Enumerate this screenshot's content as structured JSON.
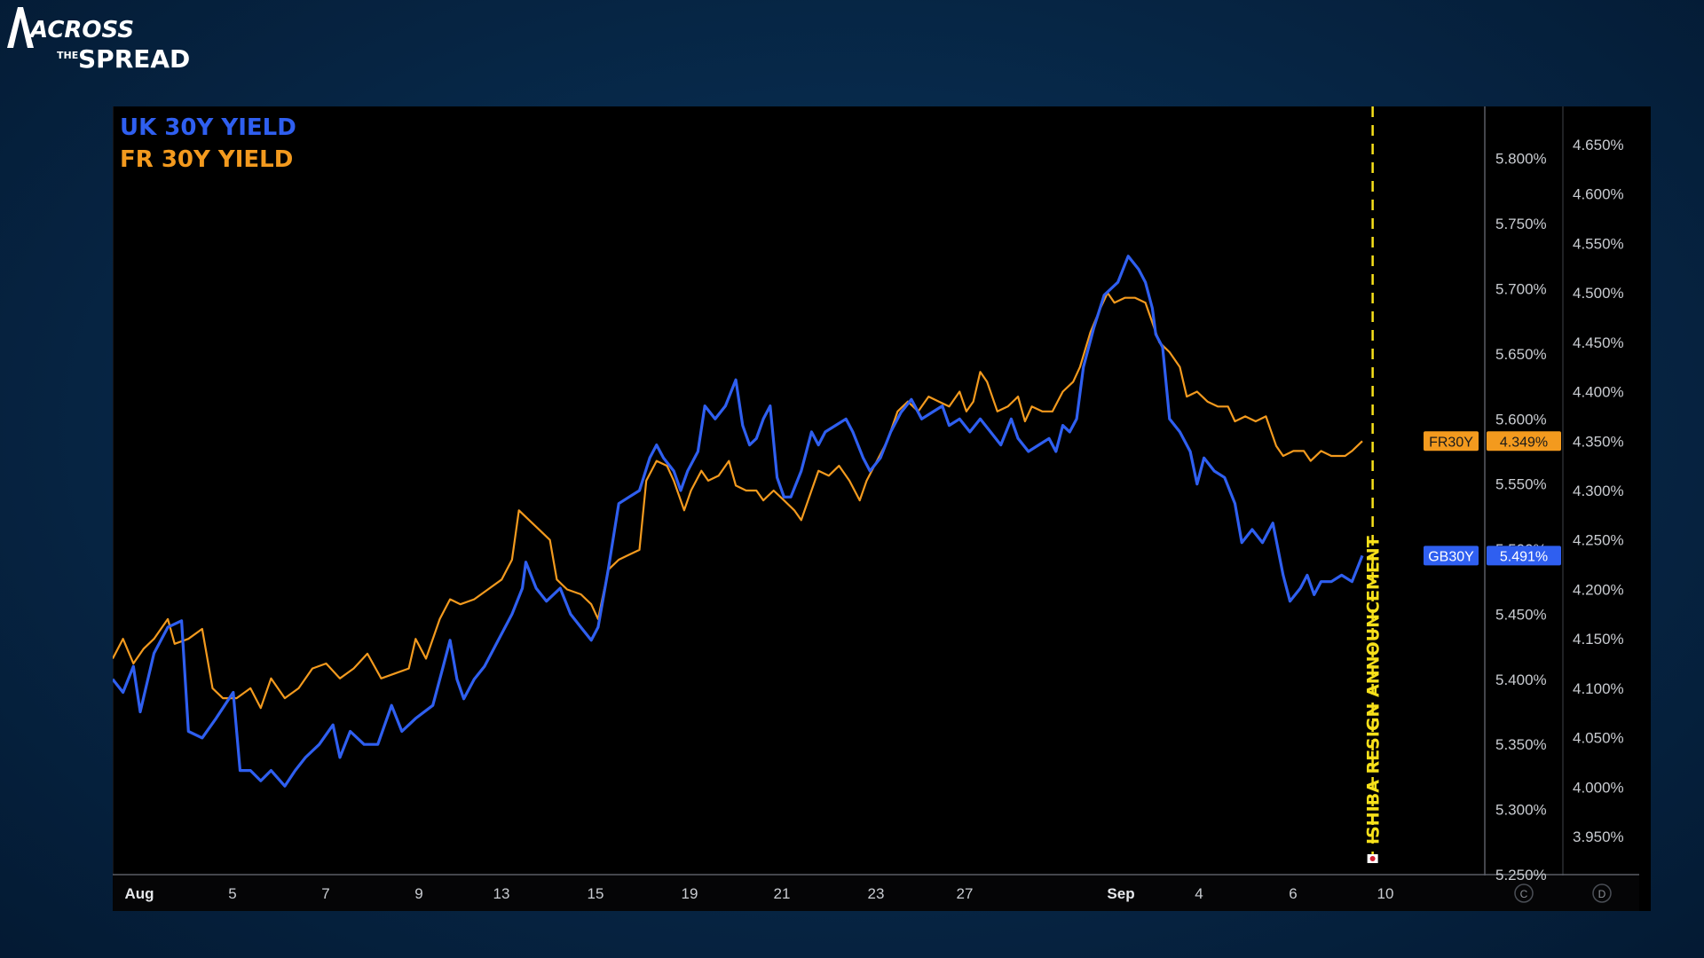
{
  "logo": {
    "line1": "ACROSS",
    "small": "THE",
    "line2": "SPREAD"
  },
  "colors": {
    "uk": "#2f5ff0",
    "fr": "#f39a1e",
    "annotation": "#f7e01a",
    "axis_text": "#c9ccd1"
  },
  "chart_data": {
    "type": "line",
    "legend": [
      "UK 30Y YIELD",
      "FR 30Y YIELD"
    ],
    "legend_position": "top-left",
    "grid": false,
    "x_ticks": [
      "Aug",
      "5",
      "7",
      "9",
      "13",
      "15",
      "19",
      "21",
      "23",
      "27",
      "Sep",
      "4",
      "6",
      "10"
    ],
    "bold_x_ticks": [
      "Aug",
      "Sep"
    ],
    "scale_buttons": [
      "C",
      "D"
    ],
    "annotation": {
      "text": "ISHIBA RESIGN ANNOUNCEMENT",
      "at_index": 36.6
    },
    "y_axis_left": {
      "series": "UK 30Y YIELD",
      "range": [
        5.25,
        5.84
      ],
      "ticks": [
        "5.800%",
        "5.750%",
        "5.700%",
        "5.650%",
        "5.600%",
        "5.550%",
        "5.500%",
        "5.450%",
        "5.400%",
        "5.350%",
        "5.300%",
        "5.250%"
      ]
    },
    "y_axis_right": {
      "series": "FR 30Y YIELD",
      "range": [
        3.9115,
        4.6885
      ],
      "ticks": [
        "4.650%",
        "4.600%",
        "4.550%",
        "4.500%",
        "4.450%",
        "4.400%",
        "4.350%",
        "4.300%",
        "4.250%",
        "4.200%",
        "4.150%",
        "4.100%",
        "4.050%",
        "4.000%",
        "3.950%"
      ]
    },
    "series": [
      {
        "name": "UK 30Y YIELD",
        "label_tag": "GB30Y",
        "last_value": "5.491%",
        "axis": "left",
        "points": [
          [
            0,
            5.4
          ],
          [
            0.3,
            5.39
          ],
          [
            0.6,
            5.41
          ],
          [
            0.8,
            5.375
          ],
          [
            1.2,
            5.42
          ],
          [
            1.6,
            5.44
          ],
          [
            2.0,
            5.445
          ],
          [
            2.2,
            5.36
          ],
          [
            2.6,
            5.355
          ],
          [
            3.0,
            5.37
          ],
          [
            3.5,
            5.39
          ],
          [
            3.7,
            5.33
          ],
          [
            4.0,
            5.33
          ],
          [
            4.3,
            5.322
          ],
          [
            4.6,
            5.33
          ],
          [
            5.0,
            5.318
          ],
          [
            5.3,
            5.33
          ],
          [
            5.6,
            5.34
          ],
          [
            6.0,
            5.35
          ],
          [
            6.4,
            5.365
          ],
          [
            6.6,
            5.34
          ],
          [
            6.9,
            5.36
          ],
          [
            7.3,
            5.35
          ],
          [
            7.7,
            5.35
          ],
          [
            8.1,
            5.38
          ],
          [
            8.4,
            5.36
          ],
          [
            8.8,
            5.37
          ],
          [
            9.3,
            5.38
          ],
          [
            9.6,
            5.41
          ],
          [
            9.8,
            5.43
          ],
          [
            10.0,
            5.4
          ],
          [
            10.2,
            5.385
          ],
          [
            10.5,
            5.4
          ],
          [
            10.8,
            5.41
          ],
          [
            11.2,
            5.43
          ],
          [
            11.6,
            5.45
          ],
          [
            11.9,
            5.47
          ],
          [
            12.0,
            5.49
          ],
          [
            12.3,
            5.47
          ],
          [
            12.6,
            5.46
          ],
          [
            13.0,
            5.47
          ],
          [
            13.3,
            5.45
          ],
          [
            13.6,
            5.44
          ],
          [
            13.9,
            5.43
          ],
          [
            14.1,
            5.44
          ],
          [
            14.4,
            5.485
          ],
          [
            14.7,
            5.535
          ],
          [
            15.0,
            5.54
          ],
          [
            15.3,
            5.545
          ],
          [
            15.6,
            5.57
          ],
          [
            15.8,
            5.58
          ],
          [
            16.0,
            5.57
          ],
          [
            16.3,
            5.56
          ],
          [
            16.5,
            5.545
          ],
          [
            16.7,
            5.56
          ],
          [
            17.0,
            5.575
          ],
          [
            17.2,
            5.61
          ],
          [
            17.5,
            5.6
          ],
          [
            17.8,
            5.61
          ],
          [
            18.1,
            5.63
          ],
          [
            18.3,
            5.595
          ],
          [
            18.5,
            5.58
          ],
          [
            18.7,
            5.585
          ],
          [
            18.9,
            5.6
          ],
          [
            19.1,
            5.61
          ],
          [
            19.3,
            5.555
          ],
          [
            19.5,
            5.54
          ],
          [
            19.7,
            5.54
          ],
          [
            20.0,
            5.56
          ],
          [
            20.3,
            5.59
          ],
          [
            20.5,
            5.58
          ],
          [
            20.7,
            5.59
          ],
          [
            21.0,
            5.595
          ],
          [
            21.3,
            5.6
          ],
          [
            21.5,
            5.59
          ],
          [
            21.8,
            5.57
          ],
          [
            22.0,
            5.56
          ],
          [
            22.3,
            5.57
          ],
          [
            22.6,
            5.59
          ],
          [
            22.9,
            5.605
          ],
          [
            23.2,
            5.615
          ],
          [
            23.5,
            5.6
          ],
          [
            23.8,
            5.605
          ],
          [
            24.1,
            5.61
          ],
          [
            24.3,
            5.595
          ],
          [
            24.6,
            5.6
          ],
          [
            24.9,
            5.59
          ],
          [
            25.2,
            5.6
          ],
          [
            25.5,
            5.59
          ],
          [
            25.8,
            5.58
          ],
          [
            26.1,
            5.6
          ],
          [
            26.3,
            5.585
          ],
          [
            26.6,
            5.575
          ],
          [
            26.9,
            5.58
          ],
          [
            27.2,
            5.585
          ],
          [
            27.4,
            5.575
          ],
          [
            27.6,
            5.595
          ],
          [
            27.8,
            5.59
          ],
          [
            28.0,
            5.6
          ],
          [
            28.2,
            5.64
          ],
          [
            28.5,
            5.67
          ],
          [
            28.8,
            5.695
          ],
          [
            29.0,
            5.7
          ],
          [
            29.2,
            5.705
          ],
          [
            29.5,
            5.725
          ],
          [
            29.8,
            5.715
          ],
          [
            30.0,
            5.705
          ],
          [
            30.2,
            5.685
          ],
          [
            30.3,
            5.665
          ],
          [
            30.5,
            5.655
          ],
          [
            30.7,
            5.6
          ],
          [
            31.0,
            5.59
          ],
          [
            31.3,
            5.575
          ],
          [
            31.5,
            5.55
          ],
          [
            31.7,
            5.57
          ],
          [
            32.0,
            5.56
          ],
          [
            32.3,
            5.555
          ],
          [
            32.6,
            5.535
          ],
          [
            32.8,
            5.505
          ],
          [
            33.1,
            5.515
          ],
          [
            33.4,
            5.505
          ],
          [
            33.7,
            5.52
          ],
          [
            34.0,
            5.48
          ],
          [
            34.2,
            5.46
          ],
          [
            34.5,
            5.47
          ],
          [
            34.7,
            5.48
          ],
          [
            34.9,
            5.465
          ],
          [
            35.1,
            5.475
          ],
          [
            35.4,
            5.475
          ],
          [
            35.7,
            5.48
          ],
          [
            36.0,
            5.475
          ],
          [
            36.3,
            5.495
          ]
        ]
      },
      {
        "name": "FR 30Y YIELD",
        "label_tag": "FR30Y",
        "last_value": "4.349%",
        "axis": "right",
        "points": [
          [
            0,
            4.13
          ],
          [
            0.3,
            4.15
          ],
          [
            0.6,
            4.125
          ],
          [
            0.9,
            4.14
          ],
          [
            1.2,
            4.15
          ],
          [
            1.6,
            4.17
          ],
          [
            1.8,
            4.145
          ],
          [
            2.2,
            4.15
          ],
          [
            2.6,
            4.16
          ],
          [
            2.9,
            4.1
          ],
          [
            3.2,
            4.09
          ],
          [
            3.6,
            4.09
          ],
          [
            4.0,
            4.1
          ],
          [
            4.3,
            4.08
          ],
          [
            4.6,
            4.11
          ],
          [
            5.0,
            4.09
          ],
          [
            5.4,
            4.1
          ],
          [
            5.8,
            4.12
          ],
          [
            6.2,
            4.125
          ],
          [
            6.6,
            4.11
          ],
          [
            7.0,
            4.12
          ],
          [
            7.4,
            4.135
          ],
          [
            7.8,
            4.11
          ],
          [
            8.2,
            4.115
          ],
          [
            8.6,
            4.12
          ],
          [
            8.8,
            4.15
          ],
          [
            9.1,
            4.13
          ],
          [
            9.5,
            4.17
          ],
          [
            9.8,
            4.19
          ],
          [
            10.1,
            4.185
          ],
          [
            10.5,
            4.19
          ],
          [
            10.9,
            4.2
          ],
          [
            11.3,
            4.21
          ],
          [
            11.6,
            4.23
          ],
          [
            11.8,
            4.28
          ],
          [
            12.1,
            4.27
          ],
          [
            12.4,
            4.26
          ],
          [
            12.7,
            4.25
          ],
          [
            12.9,
            4.21
          ],
          [
            13.2,
            4.2
          ],
          [
            13.6,
            4.195
          ],
          [
            13.9,
            4.185
          ],
          [
            14.1,
            4.17
          ],
          [
            14.4,
            4.22
          ],
          [
            14.7,
            4.23
          ],
          [
            15.0,
            4.235
          ],
          [
            15.3,
            4.24
          ],
          [
            15.5,
            4.31
          ],
          [
            15.8,
            4.33
          ],
          [
            16.1,
            4.325
          ],
          [
            16.3,
            4.31
          ],
          [
            16.6,
            4.28
          ],
          [
            16.8,
            4.3
          ],
          [
            17.1,
            4.32
          ],
          [
            17.3,
            4.31
          ],
          [
            17.6,
            4.315
          ],
          [
            17.9,
            4.33
          ],
          [
            18.1,
            4.305
          ],
          [
            18.4,
            4.3
          ],
          [
            18.7,
            4.3
          ],
          [
            18.9,
            4.29
          ],
          [
            19.2,
            4.3
          ],
          [
            19.5,
            4.29
          ],
          [
            19.8,
            4.28
          ],
          [
            20.0,
            4.27
          ],
          [
            20.3,
            4.3
          ],
          [
            20.5,
            4.32
          ],
          [
            20.8,
            4.315
          ],
          [
            21.1,
            4.325
          ],
          [
            21.4,
            4.31
          ],
          [
            21.7,
            4.29
          ],
          [
            21.9,
            4.31
          ],
          [
            22.2,
            4.33
          ],
          [
            22.5,
            4.35
          ],
          [
            22.8,
            4.38
          ],
          [
            23.1,
            4.39
          ],
          [
            23.4,
            4.38
          ],
          [
            23.7,
            4.395
          ],
          [
            24.0,
            4.39
          ],
          [
            24.3,
            4.385
          ],
          [
            24.6,
            4.4
          ],
          [
            24.8,
            4.38
          ],
          [
            25.0,
            4.39
          ],
          [
            25.2,
            4.42
          ],
          [
            25.4,
            4.41
          ],
          [
            25.7,
            4.38
          ],
          [
            26.0,
            4.385
          ],
          [
            26.3,
            4.395
          ],
          [
            26.5,
            4.37
          ],
          [
            26.7,
            4.385
          ],
          [
            27.0,
            4.38
          ],
          [
            27.3,
            4.38
          ],
          [
            27.6,
            4.4
          ],
          [
            27.9,
            4.41
          ],
          [
            28.1,
            4.425
          ],
          [
            28.4,
            4.46
          ],
          [
            28.7,
            4.485
          ],
          [
            28.9,
            4.5
          ],
          [
            29.1,
            4.49
          ],
          [
            29.4,
            4.495
          ],
          [
            29.7,
            4.495
          ],
          [
            30.0,
            4.49
          ],
          [
            30.2,
            4.47
          ],
          [
            30.4,
            4.45
          ],
          [
            30.7,
            4.44
          ],
          [
            31.0,
            4.425
          ],
          [
            31.2,
            4.395
          ],
          [
            31.5,
            4.4
          ],
          [
            31.8,
            4.39
          ],
          [
            32.1,
            4.385
          ],
          [
            32.4,
            4.385
          ],
          [
            32.6,
            4.37
          ],
          [
            32.9,
            4.375
          ],
          [
            33.2,
            4.37
          ],
          [
            33.5,
            4.375
          ],
          [
            33.8,
            4.345
          ],
          [
            34.0,
            4.335
          ],
          [
            34.3,
            4.34
          ],
          [
            34.6,
            4.34
          ],
          [
            34.8,
            4.33
          ],
          [
            35.1,
            4.34
          ],
          [
            35.4,
            4.335
          ],
          [
            35.8,
            4.335
          ],
          [
            36.0,
            4.34
          ],
          [
            36.3,
            4.35
          ]
        ]
      }
    ]
  }
}
